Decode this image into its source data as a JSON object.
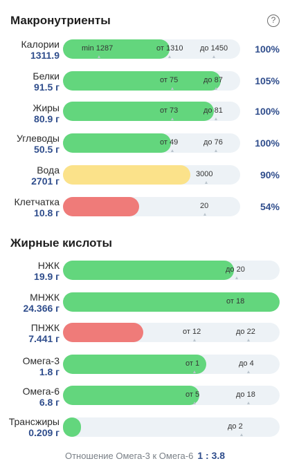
{
  "macros": {
    "title": "Макронутриенты",
    "help": "?",
    "rows": [
      {
        "name": "Калории",
        "value": "1311.9",
        "pct": "100%",
        "fill_fraction": 0.6,
        "color": "green",
        "labels": [
          "min 1287",
          "от 1310",
          "до 1450"
        ]
      },
      {
        "name": "Белки",
        "value": "91.5 г",
        "pct": "105%",
        "fill_fraction": 0.89,
        "color": "green",
        "labels": [
          "от 75",
          "до 87"
        ]
      },
      {
        "name": "Жиры",
        "value": "80.9 г",
        "pct": "100%",
        "fill_fraction": 0.85,
        "color": "green",
        "labels": [
          "от 73",
          "до 81"
        ]
      },
      {
        "name": "Углеводы",
        "value": "50.5 г",
        "pct": "100%",
        "fill_fraction": 0.61,
        "color": "green",
        "labels": [
          "от 49",
          "до 76"
        ]
      },
      {
        "name": "Вода",
        "value": "2701 г",
        "pct": "90%",
        "fill_fraction": 0.72,
        "color": "yellow",
        "labels": [
          "3000"
        ]
      },
      {
        "name": "Клетчатка",
        "value": "10.8 г",
        "pct": "54%",
        "fill_fraction": 0.43,
        "color": "red",
        "labels": [
          "20"
        ]
      }
    ]
  },
  "fatty": {
    "title": "Жирные кислоты",
    "rows": [
      {
        "name": "НЖК",
        "value": "19.9 г",
        "fill_fraction": 0.79,
        "color": "green",
        "labels": [
          "до 20"
        ]
      },
      {
        "name": "МНЖК",
        "value": "24.366 г",
        "fill_fraction": 1.0,
        "color": "green",
        "labels": [
          "от 18"
        ]
      },
      {
        "name": "ПНЖК",
        "value": "7.441 г",
        "fill_fraction": 0.37,
        "color": "red",
        "labels": [
          "от 12",
          "до 22"
        ]
      },
      {
        "name": "Омега-3",
        "value": "1.8 г",
        "fill_fraction": 0.66,
        "color": "green",
        "labels": [
          "от 1",
          "до 4"
        ]
      },
      {
        "name": "Омега-6",
        "value": "6.8 г",
        "fill_fraction": 0.63,
        "color": "green",
        "labels": [
          "от 5",
          "до 18"
        ]
      },
      {
        "name": "Трансжиры",
        "value": "0.209 г",
        "fill_fraction": 0.08,
        "color": "green",
        "labels": [
          "до 2"
        ]
      }
    ]
  },
  "ratio": {
    "label": "Отношение Омега-3 к Омега-6",
    "value": "1 : 3.8"
  }
}
